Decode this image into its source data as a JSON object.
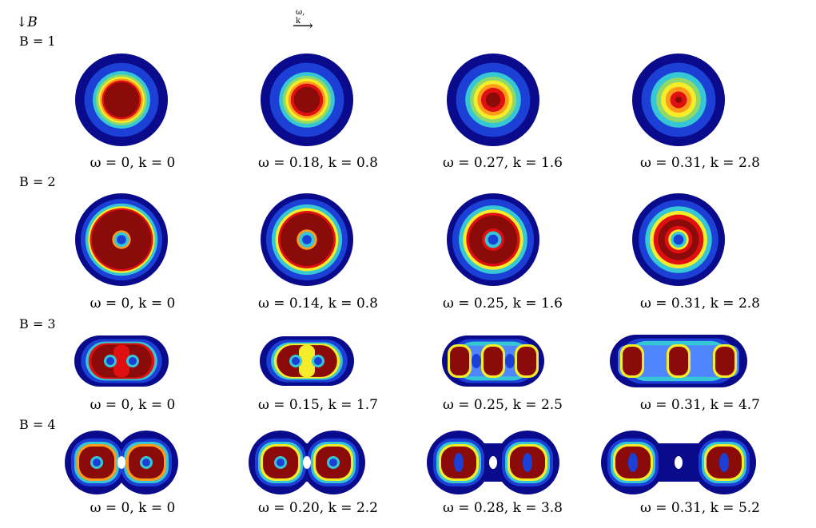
{
  "header": {
    "b_arrow": "↓",
    "b_symbol": "B",
    "wk_label": "ω, k",
    "wk_arrow": "⟶"
  },
  "colors": {
    "deep_blue": "#0a0a8c",
    "blue": "#1c3fd6",
    "mid_blue": "#4f86ff",
    "cyan": "#35c7d6",
    "green": "#8fd86a",
    "yellow": "#f5ec2a",
    "orange": "#ff9a1a",
    "red": "#e01010",
    "dark_red": "#8b0a0a"
  },
  "rows": [
    {
      "label": "B = 1",
      "captions": [
        "ω = 0, k = 0",
        "ω = 0.18, k = 0.8",
        "ω = 0.27, k = 1.6",
        "ω = 0.31, k = 2.8"
      ]
    },
    {
      "label": "B = 2",
      "captions": [
        "ω = 0, k = 0",
        "ω = 0.14, k = 0.8",
        "ω = 0.25, k = 1.6",
        "ω = 0.31, k = 2.8"
      ]
    },
    {
      "label": "B = 3",
      "captions": [
        "ω = 0, k = 0",
        "ω = 0.15, k = 1.7",
        "ω = 0.25, k = 2.5",
        "ω = 0.31, k = 4.7"
      ]
    },
    {
      "label": "B = 4",
      "captions": [
        "ω = 0, k = 0",
        "ω = 0.20, k = 2.2",
        "ω = 0.28, k = 3.8",
        "ω = 0.31, k = 5.2"
      ]
    }
  ]
}
